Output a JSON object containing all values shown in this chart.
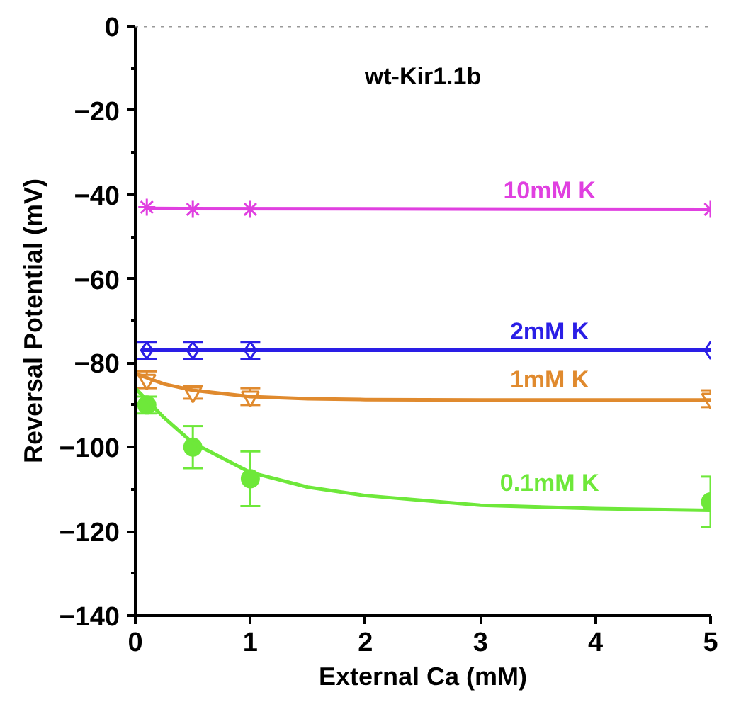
{
  "chart_data": {
    "type": "scatter",
    "title": "wt-Kir1.1b",
    "xlabel": "External Ca (mM)",
    "ylabel": "Reversal Potential (mV)",
    "x": [
      0.1,
      0.5,
      1,
      5
    ],
    "series": [
      {
        "name": "10mM K",
        "color": "#e040e0",
        "marker": "cross",
        "values": [
          -43,
          -43.5,
          -43.5,
          -43.5
        ]
      },
      {
        "name": "2mM K",
        "color": "#2a1ee6",
        "marker": "diamond",
        "values": [
          -77,
          -77,
          -77,
          -77
        ],
        "errors": [
          2,
          2,
          2,
          null
        ]
      },
      {
        "name": "1mM K",
        "color": "#e08a2e",
        "marker": "triangle",
        "values": [
          -84,
          -87,
          -88,
          -88.5
        ],
        "errors": [
          2,
          1.5,
          2,
          2
        ]
      },
      {
        "name": "0.1mM K",
        "color": "#6ee83a",
        "marker": "circle",
        "values": [
          -90,
          -100,
          -107.5,
          -113
        ],
        "errors": [
          2,
          5,
          6.5,
          6
        ]
      },
      {
        "type": "line",
        "color": "#e040e0",
        "x": [
          0.1,
          5
        ],
        "values": [
          -43.3,
          -43.5
        ]
      },
      {
        "type": "line",
        "color": "#2a1ee6",
        "x": [
          0.05,
          5
        ],
        "values": [
          -77,
          -77
        ]
      },
      {
        "type": "line",
        "color": "#e08a2e",
        "x": [
          0,
          0.25,
          0.5,
          1,
          1.5,
          2,
          3,
          5
        ],
        "values": [
          -82.5,
          -85,
          -86.5,
          -88,
          -88.5,
          -88.7,
          -88.8,
          -88.8
        ]
      },
      {
        "type": "line",
        "color": "#6ee83a",
        "x": [
          0,
          0.25,
          0.5,
          1,
          1.5,
          2,
          3,
          4,
          5
        ],
        "values": [
          -86,
          -93,
          -99,
          -106,
          -109.5,
          -111.5,
          -113.8,
          -114.6,
          -115
        ]
      }
    ],
    "xlim": [
      0,
      5
    ],
    "xticks": [
      0,
      1,
      2,
      3,
      4,
      5
    ],
    "ylim": [
      -140,
      0
    ],
    "yticks": [
      -140,
      -120,
      -100,
      -80,
      -60,
      -40,
      -20,
      0
    ],
    "ref_lines": [
      {
        "axis": "y",
        "value": 0,
        "color": "#999999",
        "line_style": "dotted"
      }
    ],
    "grid": false
  }
}
